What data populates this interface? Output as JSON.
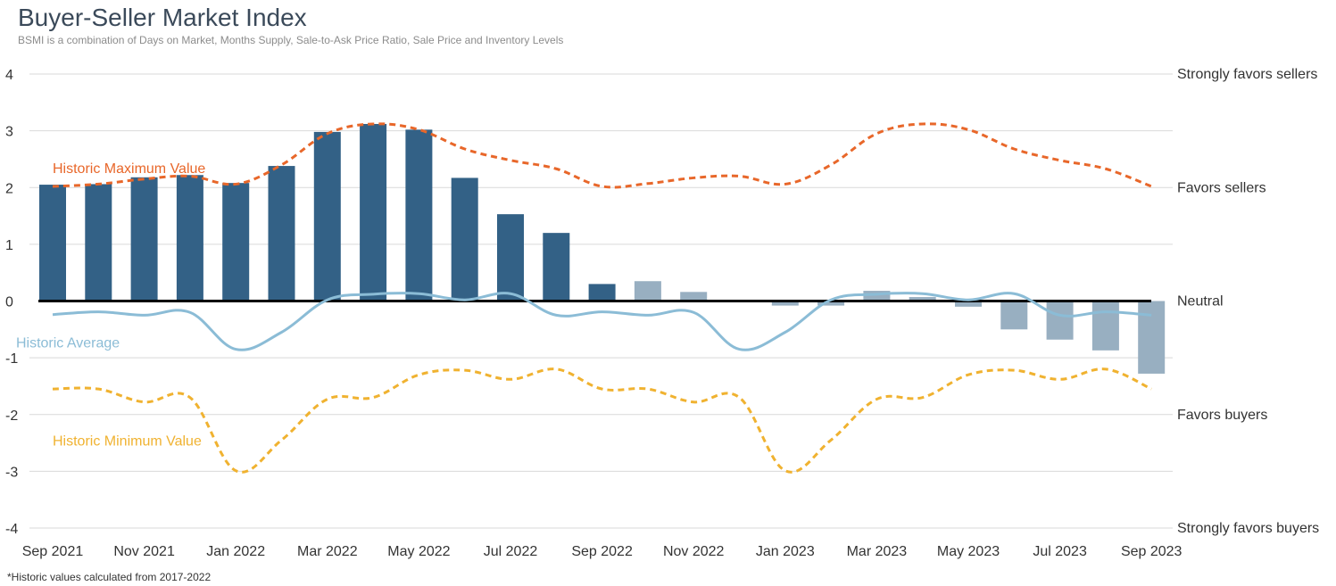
{
  "header": {
    "title": "Buyer-Seller Market Index",
    "subtitle": "BSMI is a combination of Days on Market, Months Supply, Sale-to-Ask Price Ratio, Sale Price and Inventory Levels"
  },
  "footnote": "*Historic values calculated from 2017-2022",
  "colors": {
    "bar_dark": "#336186",
    "bar_light": "#98afc1",
    "max_line": "#e8672a",
    "avg_line": "#8bbcd6",
    "min_line": "#f0b230",
    "neutral_line": "#000000",
    "grid": "#d9d9d9"
  },
  "chart_data": {
    "type": "bar",
    "title": "Buyer-Seller Market Index",
    "ylim": [
      -4,
      4
    ],
    "yticks": [
      4,
      3,
      2,
      1,
      0,
      -1,
      -2,
      -3,
      -4
    ],
    "grid": true,
    "categories": [
      "Sep 2021",
      "Oct 2021",
      "Nov 2021",
      "Dec 2021",
      "Jan 2022",
      "Feb 2022",
      "Mar 2022",
      "Apr 2022",
      "May 2022",
      "Jun 2022",
      "Jul 2022",
      "Aug 2022",
      "Sep 2022",
      "Oct 2022",
      "Nov 2022",
      "Dec 2022",
      "Jan 2023",
      "Feb 2023",
      "Mar 2023",
      "Apr 2023",
      "May 2023",
      "Jun 2023",
      "Jul 2023",
      "Aug 2023",
      "Sep 2023"
    ],
    "xtick_labels": [
      "Sep 2021",
      "Nov 2021",
      "Jan 2022",
      "Mar 2022",
      "May 2022",
      "Jul 2022",
      "Sep 2022",
      "Nov 2022",
      "Jan 2023",
      "Mar 2023",
      "May 2023",
      "Jul 2023",
      "Sep 2023"
    ],
    "zone_labels": [
      {
        "label": "Strongly favors sellers",
        "y": 4
      },
      {
        "label": "Favors sellers",
        "y": 2
      },
      {
        "label": "Neutral",
        "y": 0
      },
      {
        "label": "Favors buyers",
        "y": -2
      },
      {
        "label": "Strongly favors buyers",
        "y": -4
      }
    ],
    "series": [
      {
        "name": "BSMI",
        "kind": "bar",
        "values": [
          2.05,
          2.06,
          2.18,
          2.22,
          2.08,
          2.38,
          2.98,
          3.12,
          3.02,
          2.17,
          1.53,
          1.2,
          0.3,
          0.35,
          0.16,
          0.0,
          -0.08,
          -0.08,
          0.18,
          0.07,
          -0.1,
          -0.5,
          -0.68,
          -0.87,
          -1.28
        ],
        "highlight_through_index": 12
      },
      {
        "name": "Historic Maximum Value",
        "kind": "line",
        "style": "dashed",
        "values": [
          2.02,
          2.06,
          2.15,
          2.2,
          2.06,
          2.4,
          2.95,
          3.12,
          3.02,
          2.68,
          2.48,
          2.33,
          2.02,
          2.07,
          2.17,
          2.2,
          2.06,
          2.4,
          2.95,
          3.12,
          3.02,
          2.68,
          2.48,
          2.33,
          2.02
        ]
      },
      {
        "name": "Historic Average",
        "kind": "line",
        "style": "solid",
        "values": [
          -0.24,
          -0.19,
          -0.25,
          -0.2,
          -0.85,
          -0.55,
          0.02,
          0.12,
          0.13,
          0.02,
          0.13,
          -0.25,
          -0.19,
          -0.25,
          -0.2,
          -0.85,
          -0.55,
          0.02,
          0.12,
          0.13,
          0.02,
          0.13,
          -0.25,
          -0.19,
          -0.25
        ]
      },
      {
        "name": "Historic Minimum Value",
        "kind": "line",
        "style": "dashed",
        "values": [
          -1.55,
          -1.55,
          -1.78,
          -1.7,
          -2.99,
          -2.45,
          -1.73,
          -1.7,
          -1.3,
          -1.22,
          -1.38,
          -1.2,
          -1.55,
          -1.55,
          -1.78,
          -1.7,
          -2.99,
          -2.45,
          -1.73,
          -1.7,
          -1.3,
          -1.22,
          -1.38,
          -1.2,
          -1.55
        ]
      }
    ],
    "series_label_positions": [
      {
        "series": "Historic Maximum Value",
        "at_index": 2,
        "y": 2.35
      },
      {
        "series": "Historic Average",
        "at_index": 1.2,
        "y": -0.72
      },
      {
        "series": "Historic Minimum Value",
        "at_index": 2,
        "y": -2.45
      }
    ]
  }
}
